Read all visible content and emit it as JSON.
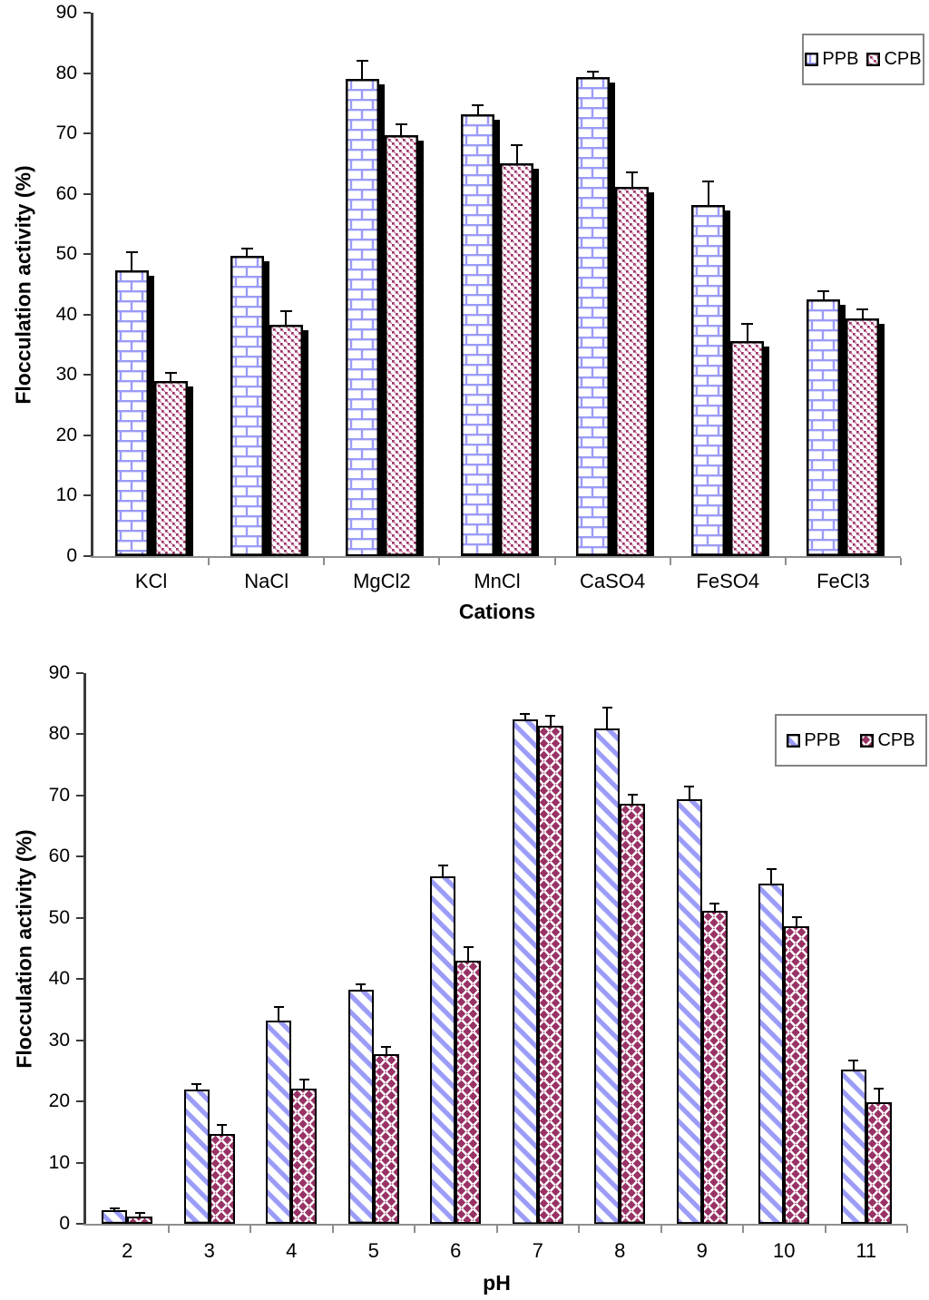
{
  "colors": {
    "ppb_blue": "#9b9bf8",
    "cpb_maroon": "#993366",
    "cpb_pink_light": "#d27fa8",
    "axis_dark": "#3a3a3a",
    "axis_gray": "#8e8e8e",
    "legend_border": "#848484",
    "error_bar_black": "#000000",
    "background": "#ffffff"
  },
  "chart_data": [
    {
      "type": "bar",
      "title": "",
      "xlabel": "Cations",
      "ylabel": "Flocculation activity (%)",
      "ylim": [
        0,
        90
      ],
      "yticks": [
        0,
        10,
        20,
        30,
        40,
        50,
        60,
        70,
        80,
        90
      ],
      "grid": false,
      "legend_position": "top-right",
      "legend_entries": [
        "PPB",
        "CPB"
      ],
      "bar_effect": "black-drop-shadow",
      "categories": [
        "KCl",
        "NaCl",
        "MgCl2",
        "MnCl",
        "CaSO4",
        "FeSO4",
        "FeCl3"
      ],
      "series": [
        {
          "name": "PPB",
          "pattern": "p-brick",
          "color": "#9b9bf8",
          "values": [
            47.3,
            49.7,
            79.1,
            73.1,
            79.3,
            58.1,
            42.5
          ],
          "errors": [
            3.0,
            1.3,
            3.0,
            1.5,
            0.9,
            4.0,
            1.3
          ]
        },
        {
          "name": "CPB",
          "pattern": "p-diag",
          "color": "#993366",
          "values": [
            29.0,
            38.3,
            69.7,
            65.0,
            61.2,
            35.6,
            39.3
          ],
          "errors": [
            1.4,
            2.3,
            1.8,
            3.0,
            2.3,
            2.8,
            1.5
          ]
        }
      ]
    },
    {
      "type": "bar",
      "title": "",
      "xlabel": "pH",
      "ylabel": "Flocculation activity (%)",
      "ylim": [
        0,
        90
      ],
      "yticks": [
        0,
        10,
        20,
        30,
        40,
        50,
        60,
        70,
        80,
        90
      ],
      "grid": false,
      "legend_position": "top-right",
      "legend_entries": [
        "PPB",
        "CPB"
      ],
      "bar_effect": "none",
      "categories": [
        "2",
        "3",
        "4",
        "5",
        "6",
        "7",
        "8",
        "9",
        "10",
        "11"
      ],
      "series": [
        {
          "name": "PPB",
          "pattern": "p-stripe",
          "color": "#9b9bf8",
          "values": [
            2.2,
            21.9,
            33.2,
            38.2,
            56.8,
            82.5,
            81.0,
            69.4,
            55.6,
            25.2
          ],
          "errors": [
            0.3,
            1.0,
            2.2,
            1.0,
            1.7,
            0.9,
            3.3,
            2.0,
            2.4,
            1.5
          ]
        },
        {
          "name": "CPB",
          "pattern": "p-diamond",
          "color": "#993366",
          "values": [
            1.2,
            14.7,
            22.1,
            27.7,
            43.0,
            81.4,
            68.6,
            51.2,
            48.7,
            19.9
          ],
          "errors": [
            0.6,
            1.4,
            1.5,
            1.2,
            2.2,
            1.7,
            1.6,
            1.1,
            1.4,
            2.2
          ]
        }
      ]
    }
  ]
}
